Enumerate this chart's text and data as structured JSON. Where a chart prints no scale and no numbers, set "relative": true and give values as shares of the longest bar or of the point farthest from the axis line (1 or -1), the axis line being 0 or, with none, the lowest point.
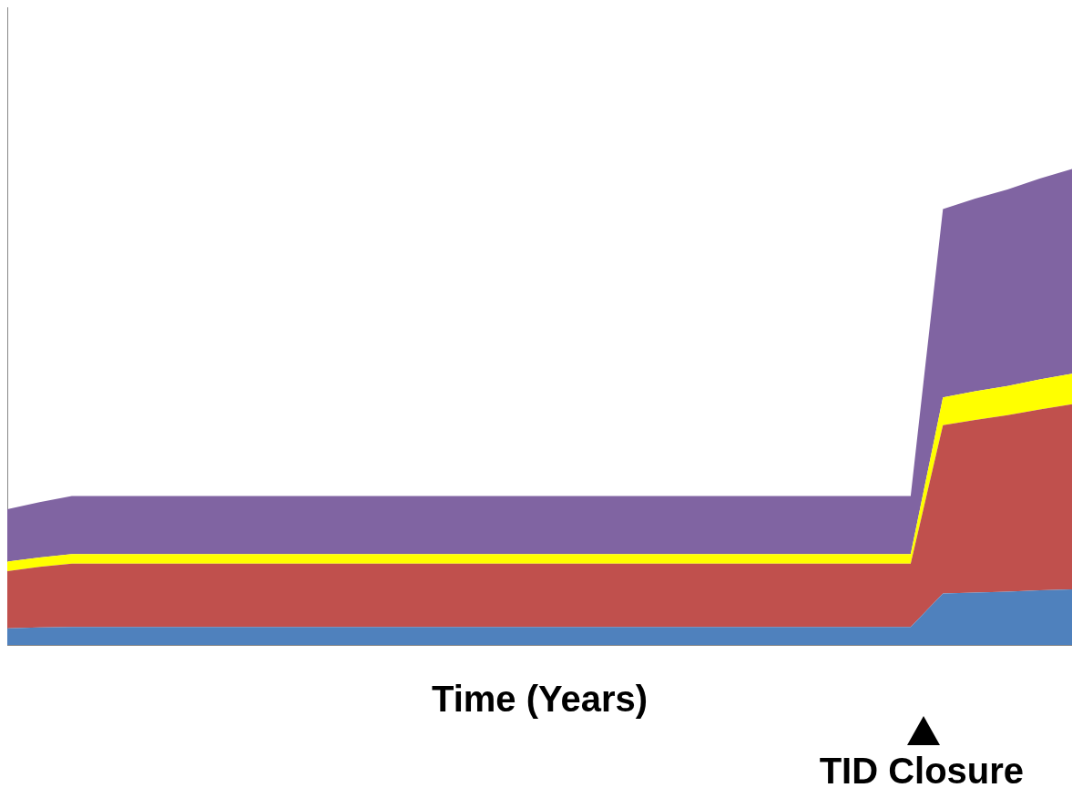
{
  "chart_data": {
    "type": "area",
    "xlabel": "Time (Years)",
    "relative": true,
    "stacked": true,
    "grid": false,
    "legend": false,
    "categories": [
      null,
      null,
      null,
      null,
      null,
      null,
      null,
      null,
      null,
      null,
      null,
      null,
      null,
      null,
      null,
      null,
      null,
      null,
      null,
      null,
      null,
      null,
      null,
      null,
      null,
      null,
      null,
      null,
      null,
      null,
      null,
      null,
      null,
      null
    ],
    "series": [
      {
        "color": "#4f81bd",
        "values": [
          0.035,
          0.037,
          0.038,
          0.038,
          0.038,
          0.038,
          0.038,
          0.038,
          0.038,
          0.038,
          0.038,
          0.038,
          0.038,
          0.038,
          0.038,
          0.038,
          0.038,
          0.038,
          0.038,
          0.038,
          0.038,
          0.038,
          0.038,
          0.038,
          0.038,
          0.038,
          0.038,
          0.038,
          0.038,
          0.108,
          0.11,
          0.112,
          0.115,
          0.117
        ]
      },
      {
        "color": "#c0504d",
        "values": [
          0.12,
          0.127,
          0.133,
          0.133,
          0.133,
          0.133,
          0.133,
          0.133,
          0.133,
          0.133,
          0.133,
          0.133,
          0.133,
          0.133,
          0.133,
          0.133,
          0.133,
          0.133,
          0.133,
          0.133,
          0.133,
          0.133,
          0.133,
          0.133,
          0.133,
          0.133,
          0.133,
          0.133,
          0.133,
          0.354,
          0.363,
          0.371,
          0.38,
          0.389
        ]
      },
      {
        "color": "#ffff00",
        "values": [
          0.02,
          0.02,
          0.02,
          0.02,
          0.02,
          0.02,
          0.02,
          0.02,
          0.02,
          0.02,
          0.02,
          0.02,
          0.02,
          0.02,
          0.02,
          0.02,
          0.02,
          0.02,
          0.02,
          0.02,
          0.02,
          0.02,
          0.02,
          0.02,
          0.02,
          0.02,
          0.02,
          0.02,
          0.02,
          0.058,
          0.06,
          0.061,
          0.063,
          0.064
        ]
      },
      {
        "color": "#8064a2",
        "values": [
          0.11,
          0.116,
          0.122,
          0.122,
          0.122,
          0.122,
          0.122,
          0.122,
          0.122,
          0.122,
          0.122,
          0.122,
          0.122,
          0.122,
          0.122,
          0.122,
          0.122,
          0.122,
          0.122,
          0.122,
          0.122,
          0.122,
          0.122,
          0.122,
          0.122,
          0.122,
          0.122,
          0.122,
          0.122,
          0.396,
          0.405,
          0.413,
          0.422,
          0.43
        ]
      }
    ],
    "annotations": [
      "TID Closure"
    ]
  }
}
